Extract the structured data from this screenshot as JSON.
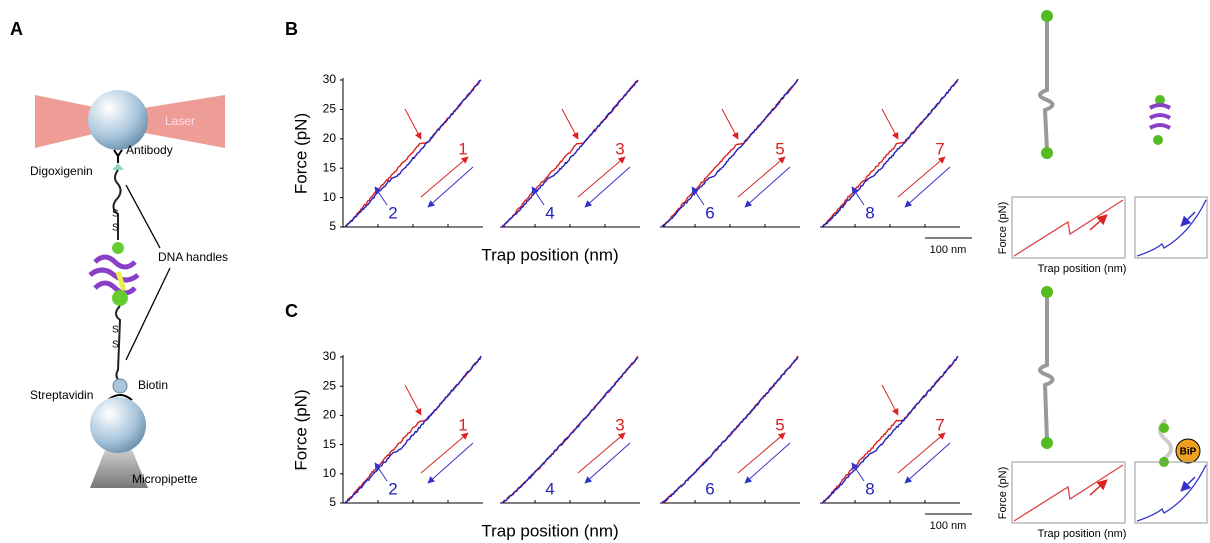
{
  "panel_labels": [
    "A",
    "B",
    "C"
  ],
  "schematic": {
    "laser": "Laser",
    "antibody": "Antibody",
    "digoxigenin": "Digoxigenin",
    "sulfur": "S",
    "dna_handles": "DNA handles",
    "streptavidin": "Streptavidin",
    "biotin": "Biotin",
    "micropipette": "Micropipette"
  },
  "plots": {
    "y_label": "Force (pN)",
    "x_label": "Trap position (nm)",
    "y_ticks": [
      30,
      25,
      20,
      15,
      10,
      5
    ],
    "scale_bar": "100 nm",
    "B": [
      [
        "1",
        "2"
      ],
      [
        "3",
        "4"
      ],
      [
        "5",
        "6"
      ],
      [
        "7",
        "8"
      ]
    ],
    "C": [
      [
        "1",
        "2"
      ],
      [
        "3",
        "4"
      ],
      [
        "5",
        "6"
      ],
      [
        "7",
        "8"
      ]
    ]
  },
  "insets": {
    "y_label": "Force (pN)",
    "x_label": "Trap position (nm)",
    "bip": "BiP"
  }
}
